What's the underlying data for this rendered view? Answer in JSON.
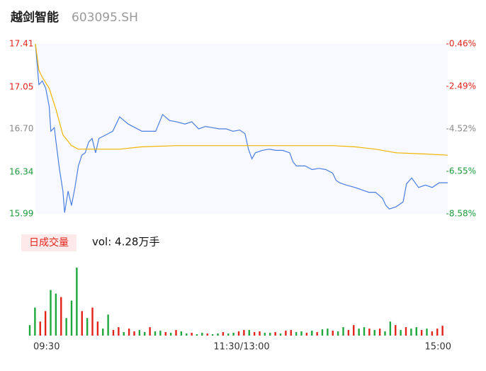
{
  "chart_data": [
    {
      "type": "line",
      "title": "越剑智能",
      "subtitle": "603095.SH",
      "background": "#f8f9fe",
      "xlim": [
        0,
        240
      ],
      "xticks": [
        {
          "value": 0,
          "label": "09:30"
        },
        {
          "value": 120,
          "label": "11:30/13:00"
        },
        {
          "value": 240,
          "label": "15:00"
        }
      ],
      "ylim": [
        15.99,
        17.41
      ],
      "yticks": [
        17.41,
        17.05,
        {
          "value": 16.7,
          "label": "16.70"
        },
        16.34,
        15.99
      ],
      "ytick_colors": [
        "#e2231a",
        "#e2231a",
        "#888888",
        "#1a9a3a",
        "#1a9a3a"
      ],
      "y2lim": [
        -8.58,
        -0.46
      ],
      "y2ticks": [
        {
          "value": -0.46,
          "label": "-0.46%"
        },
        {
          "value": -2.49,
          "label": "-2.49%"
        },
        {
          "value": -4.52,
          "label": "-4.52%"
        },
        {
          "value": -6.55,
          "label": "-6.55%"
        },
        {
          "value": -8.58,
          "label": "-8.58%"
        }
      ],
      "series": [
        {
          "color": "#4a7fe0",
          "x": [
            0,
            2,
            4,
            6,
            8,
            9,
            11,
            12,
            14,
            16,
            17,
            19,
            21,
            23,
            25,
            27,
            29,
            31,
            33,
            35,
            37,
            41,
            45,
            47,
            49,
            54,
            58,
            62,
            66,
            70,
            74,
            78,
            82,
            87,
            91,
            95,
            99,
            103,
            107,
            111,
            115,
            119,
            122,
            124,
            126,
            128,
            132,
            136,
            140,
            144,
            148,
            150,
            152,
            157,
            161,
            165,
            169,
            173,
            175,
            177,
            181,
            186,
            190,
            194,
            198,
            202,
            204,
            206,
            210,
            214,
            216,
            219,
            223,
            227,
            231,
            235,
            240
          ],
          "values": [
            17.41,
            17.07,
            17.1,
            17.04,
            16.89,
            16.68,
            16.71,
            16.59,
            16.36,
            16.18,
            16.0,
            16.18,
            16.06,
            16.21,
            16.39,
            16.48,
            16.5,
            16.59,
            16.62,
            16.5,
            16.62,
            16.65,
            16.68,
            16.74,
            16.8,
            16.74,
            16.71,
            16.68,
            16.68,
            16.68,
            16.82,
            16.77,
            16.76,
            16.74,
            16.76,
            16.7,
            16.72,
            16.71,
            16.7,
            16.7,
            16.68,
            16.69,
            16.66,
            16.53,
            16.45,
            16.5,
            16.52,
            16.53,
            16.52,
            16.52,
            16.5,
            16.42,
            16.39,
            16.39,
            16.36,
            16.37,
            16.36,
            16.33,
            16.27,
            16.25,
            16.23,
            16.21,
            16.19,
            16.17,
            16.17,
            16.12,
            16.06,
            16.03,
            16.05,
            16.09,
            16.24,
            16.29,
            16.21,
            16.23,
            16.21,
            16.25,
            16.25
          ]
        },
        {
          "color": "#f0b400",
          "x": [
            0,
            2,
            4,
            8,
            12,
            16,
            21,
            25,
            49,
            62,
            82,
            103,
            144,
            173,
            186,
            198,
            210,
            227,
            240
          ],
          "values": [
            17.41,
            17.19,
            17.13,
            17.04,
            16.86,
            16.65,
            16.56,
            16.53,
            16.53,
            16.55,
            16.56,
            16.56,
            16.56,
            16.56,
            16.55,
            16.53,
            16.5,
            16.49,
            16.48
          ]
        }
      ]
    },
    {
      "type": "bar",
      "legend_label": "日成交量",
      "summary": "vol: 4.28万手",
      "xlim": [
        0,
        240
      ],
      "ylim": [
        0,
        100
      ],
      "x": [
        0,
        3,
        6,
        9,
        12,
        15,
        18,
        21,
        24,
        27,
        30,
        33,
        36,
        39,
        42,
        45,
        48,
        51,
        54,
        57,
        60,
        63,
        66,
        69,
        72,
        75,
        78,
        81,
        84,
        87,
        90,
        93,
        96,
        99,
        102,
        105,
        108,
        111,
        114,
        117,
        120,
        123,
        126,
        129,
        132,
        135,
        138,
        141,
        144,
        147,
        150,
        153,
        156,
        159,
        162,
        165,
        168,
        171,
        174,
        177,
        180,
        183,
        186,
        189,
        192,
        195,
        198,
        201,
        204,
        207,
        210,
        213,
        216,
        219,
        222,
        225,
        228,
        231,
        234,
        237
      ],
      "values": [
        15,
        40,
        20,
        35,
        65,
        60,
        55,
        25,
        50,
        97,
        35,
        25,
        40,
        20,
        10,
        30,
        8,
        12,
        5,
        10,
        6,
        8,
        5,
        12,
        6,
        7,
        5,
        4,
        8,
        6,
        3,
        4,
        2,
        4,
        3,
        2,
        3,
        5,
        3,
        4,
        6,
        8,
        8,
        5,
        6,
        4,
        4,
        5,
        3,
        7,
        8,
        5,
        6,
        4,
        7,
        5,
        9,
        10,
        7,
        6,
        12,
        8,
        15,
        10,
        12,
        10,
        8,
        10,
        6,
        20,
        15,
        8,
        12,
        10,
        12,
        8,
        10,
        6,
        10,
        14
      ],
      "colors": [
        "#1ea83c",
        "#1ea83c",
        "#e2231a",
        "#e2231a",
        "#1ea83c",
        "#1ea83c",
        "#e2231a",
        "#1ea83c",
        "#1ea83c",
        "#1ea83c",
        "#e2231a",
        "#1ea83c",
        "#e2231a",
        "#e2231a",
        "#1ea83c",
        "#1ea83c",
        "#e2231a",
        "#e2231a",
        "#1ea83c",
        "#e2231a",
        "#e2231a",
        "#1ea83c",
        "#1ea83c",
        "#e2231a",
        "#1ea83c",
        "#1ea83c",
        "#e2231a",
        "#1ea83c",
        "#e2231a",
        "#1ea83c",
        "#1ea83c",
        "#e2231a",
        "#1ea83c",
        "#1ea83c",
        "#e2231a",
        "#1ea83c",
        "#1ea83c",
        "#e2231a",
        "#1ea83c",
        "#1ea83c",
        "#e2231a",
        "#e2231a",
        "#1ea83c",
        "#e2231a",
        "#e2231a",
        "#1ea83c",
        "#1ea83c",
        "#e2231a",
        "#1ea83c",
        "#e2231a",
        "#e2231a",
        "#1ea83c",
        "#1ea83c",
        "#e2231a",
        "#1ea83c",
        "#e2231a",
        "#1ea83c",
        "#1ea83c",
        "#e2231a",
        "#1ea83c",
        "#1ea83c",
        "#e2231a",
        "#e2231a",
        "#1ea83c",
        "#1ea83c",
        "#e2231a",
        "#1ea83c",
        "#e2231a",
        "#1ea83c",
        "#1ea83c",
        "#e2231a",
        "#1ea83c",
        "#e2231a",
        "#1ea83c",
        "#1ea83c",
        "#e2231a",
        "#1ea83c",
        "#e2231a",
        "#e2231a",
        "#e2231a"
      ]
    }
  ]
}
